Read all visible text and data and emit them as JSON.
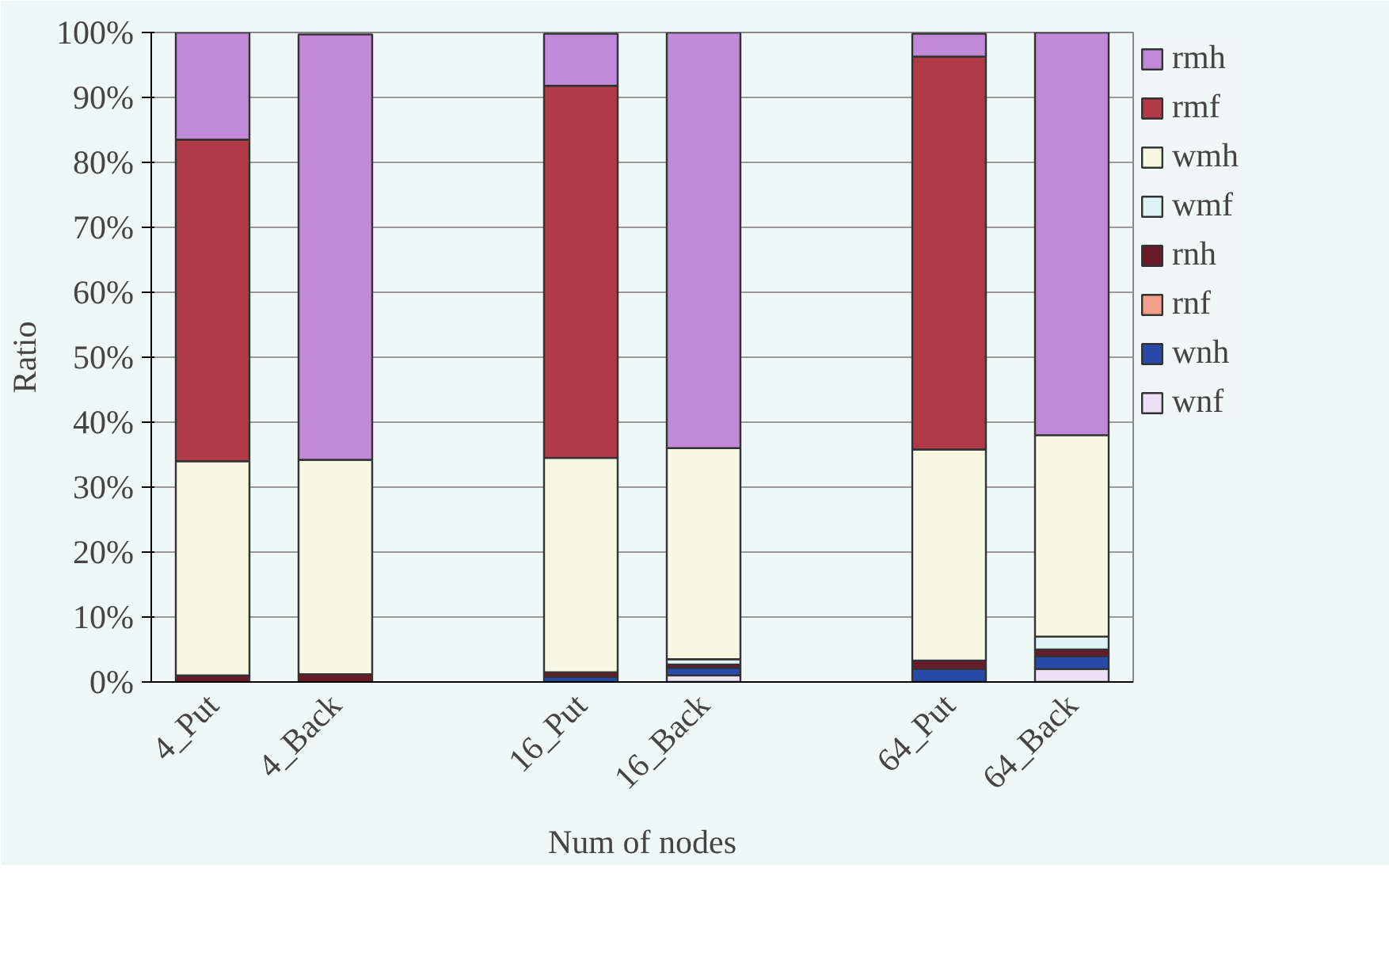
{
  "chart_data": {
    "type": "bar",
    "stacked": true,
    "xlabel": "Num of nodes",
    "ylabel": "Ratio",
    "categories": [
      "4_Put",
      "4_Back",
      null,
      "16_Put",
      "16_Back",
      null,
      "64_Put",
      "64_Back"
    ],
    "series": [
      {
        "name": "wnf",
        "color": "#ece0f4",
        "values": [
          0,
          null,
          null,
          null,
          1,
          null,
          null,
          2
        ]
      },
      {
        "name": "wnh",
        "color": "#2a4aa8",
        "values": [
          0,
          0,
          null,
          0.8,
          1.2,
          null,
          2,
          2
        ]
      },
      {
        "name": "rnf",
        "color": "#f0a088",
        "values": [
          0,
          0,
          null,
          0,
          0,
          null,
          0,
          0
        ]
      },
      {
        "name": "rnh",
        "color": "#6b1a2a",
        "values": [
          1,
          1.2,
          null,
          0.7,
          0.5,
          null,
          1.3,
          1
        ]
      },
      {
        "name": "wmf",
        "color": "#dff2f6",
        "values": [
          0,
          0,
          null,
          0,
          0.8,
          null,
          0,
          2
        ]
      },
      {
        "name": "wmh",
        "color": "#f6f8e4",
        "values": [
          33,
          33,
          null,
          33,
          32.5,
          null,
          32.5,
          31
        ]
      },
      {
        "name": "rmf",
        "color": "#b03a48",
        "values": [
          49.5,
          0,
          null,
          57.3,
          0,
          null,
          60.5,
          0
        ]
      },
      {
        "name": "rmh",
        "color": "#c08ad8",
        "values": [
          16.5,
          65.5,
          null,
          8,
          64,
          null,
          3.5,
          62
        ]
      }
    ],
    "ylim": [
      0,
      100
    ],
    "yticks": [
      {
        "value": 0,
        "label": "0%"
      },
      {
        "value": 10,
        "label": "10%"
      },
      {
        "value": 20,
        "label": "20%"
      },
      {
        "value": 30,
        "label": "30%"
      },
      {
        "value": 40,
        "label": "40%"
      },
      {
        "value": 50,
        "label": "50%"
      },
      {
        "value": 60,
        "label": "60%"
      },
      {
        "value": 70,
        "label": "70%"
      },
      {
        "value": 80,
        "label": "80%"
      },
      {
        "value": 90,
        "label": "90%"
      },
      {
        "value": 100,
        "label": "100%"
      }
    ],
    "grid": "y",
    "legend": "top right"
  }
}
